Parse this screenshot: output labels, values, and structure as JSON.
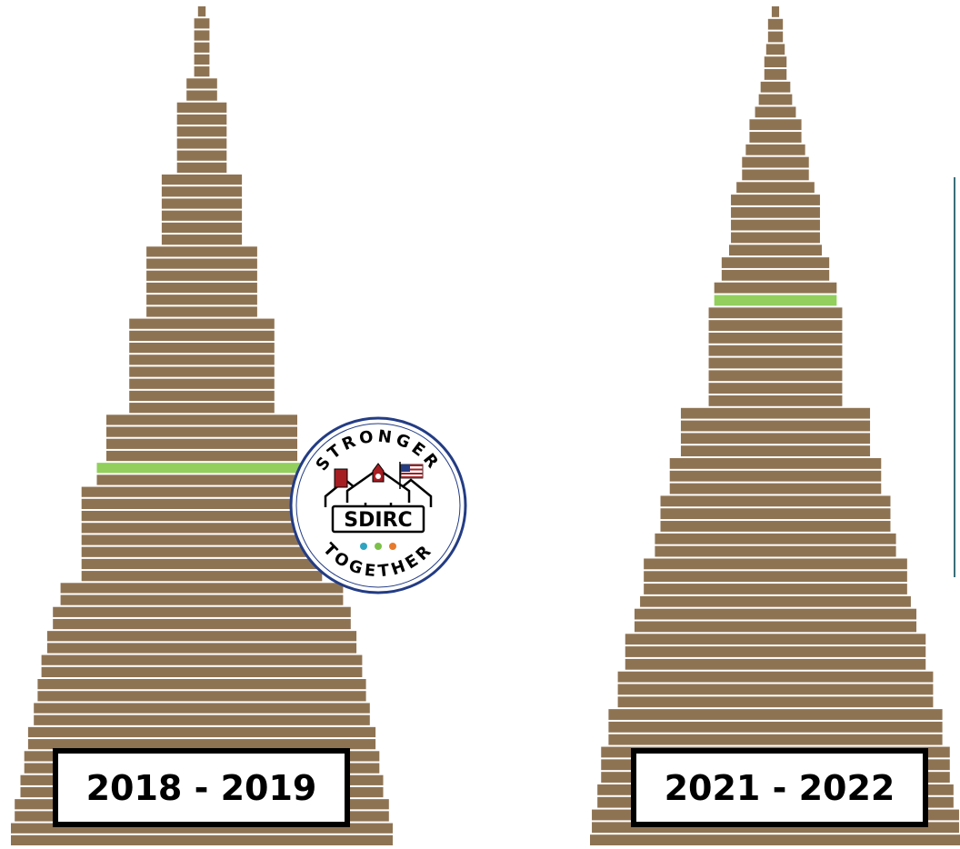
{
  "colors": {
    "bar": "#8e7353",
    "highlight": "#92cf5c",
    "logo_ring": "#233c84",
    "logo_red": "#a61d22",
    "dot_teal": "#2fa4c0",
    "dot_green": "#7cc04a",
    "dot_orange": "#e67b2d"
  },
  "chart_data": [
    {
      "type": "bar",
      "orientation": "horizontal",
      "alignment": "centered",
      "label": "2018 - 2019",
      "unit": "relative bar width (0-1)",
      "highlighted_index": 38,
      "values": [
        0.02,
        0.04,
        0.04,
        0.04,
        0.04,
        0.04,
        0.08,
        0.08,
        0.13,
        0.13,
        0.13,
        0.13,
        0.13,
        0.13,
        0.21,
        0.21,
        0.21,
        0.21,
        0.21,
        0.21,
        0.29,
        0.29,
        0.29,
        0.29,
        0.29,
        0.29,
        0.38,
        0.38,
        0.38,
        0.38,
        0.38,
        0.38,
        0.38,
        0.38,
        0.5,
        0.5,
        0.5,
        0.5,
        0.55,
        0.55,
        0.63,
        0.63,
        0.63,
        0.63,
        0.63,
        0.63,
        0.63,
        0.63,
        0.74,
        0.74,
        0.78,
        0.78,
        0.81,
        0.81,
        0.84,
        0.84,
        0.86,
        0.86,
        0.88,
        0.88,
        0.91,
        0.91,
        0.93,
        0.93,
        0.95,
        0.95,
        0.98,
        0.98,
        1.0,
        1.0
      ]
    },
    {
      "type": "bar",
      "orientation": "horizontal",
      "alignment": "centered",
      "label": "2021 - 2022",
      "unit": "relative bar width (0-1)",
      "highlighted_index": 23,
      "values": [
        0.02,
        0.04,
        0.04,
        0.05,
        0.06,
        0.06,
        0.08,
        0.09,
        0.11,
        0.14,
        0.14,
        0.16,
        0.18,
        0.18,
        0.21,
        0.24,
        0.24,
        0.24,
        0.24,
        0.25,
        0.29,
        0.29,
        0.33,
        0.33,
        0.36,
        0.36,
        0.36,
        0.36,
        0.36,
        0.36,
        0.36,
        0.36,
        0.51,
        0.51,
        0.51,
        0.51,
        0.57,
        0.57,
        0.57,
        0.62,
        0.62,
        0.62,
        0.65,
        0.65,
        0.71,
        0.71,
        0.71,
        0.73,
        0.76,
        0.76,
        0.81,
        0.81,
        0.81,
        0.85,
        0.85,
        0.85,
        0.9,
        0.9,
        0.9,
        0.94,
        0.94,
        0.94,
        0.96,
        0.96,
        0.99,
        0.99,
        1.0
      ]
    }
  ],
  "logo": {
    "top_text": "STRONGER",
    "center_text": "SDIRC",
    "bottom_text": "TOGETHER"
  }
}
